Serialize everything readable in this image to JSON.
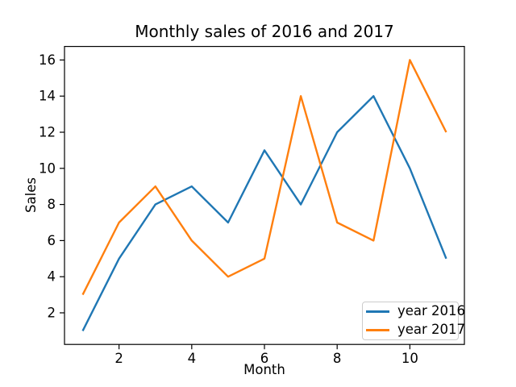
{
  "figure": {
    "background": "#ffffff",
    "axis_color": "#000000",
    "legend_border_color": "#cccccc"
  },
  "chart_data": {
    "type": "line",
    "title": "Monthly sales of 2016 and 2017",
    "xlabel": "Month",
    "ylabel": "Sales",
    "x": [
      1,
      2,
      3,
      4,
      5,
      6,
      7,
      8,
      9,
      10,
      11
    ],
    "series": [
      {
        "name": "year 2016",
        "color": "#1f77b4",
        "values": [
          1,
          5,
          8,
          9,
          7,
          11,
          8,
          12,
          14,
          10,
          5
        ]
      },
      {
        "name": "year 2017",
        "color": "#ff7f0e",
        "values": [
          3,
          7,
          9,
          6,
          4,
          5,
          14,
          7,
          6,
          16,
          12
        ]
      }
    ],
    "xticks": [
      2,
      4,
      6,
      8,
      10
    ],
    "yticks": [
      2,
      4,
      6,
      8,
      10,
      12,
      14,
      16
    ],
    "xlim": [
      0.5,
      11.5
    ],
    "ylim": [
      0.25,
      16.75
    ],
    "grid": false,
    "legend": {
      "position": "lower right",
      "entries": [
        "year 2016",
        "year 2017"
      ]
    }
  }
}
